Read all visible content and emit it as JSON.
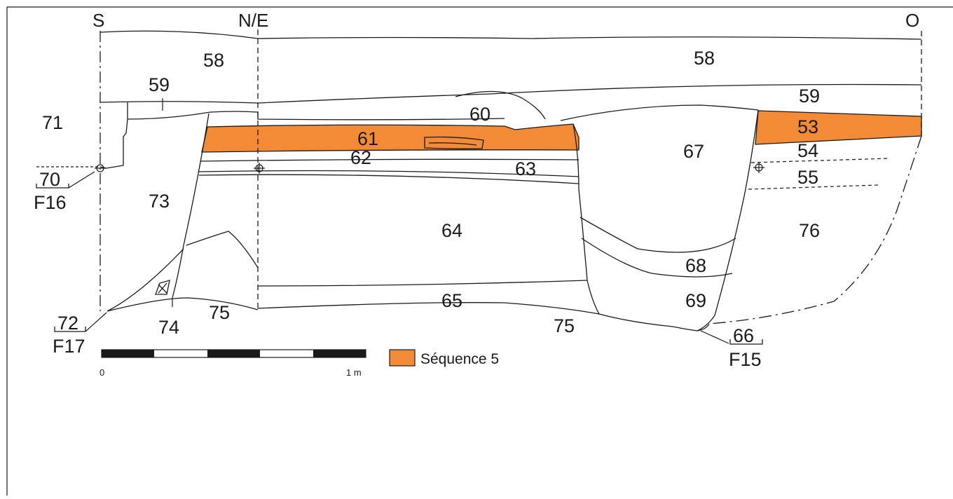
{
  "orientation": {
    "south": "S",
    "north_east": "N/E",
    "west": "O"
  },
  "layers": {
    "l58a": "58",
    "l58b": "58",
    "l59a": "59",
    "l59b": "59",
    "l60": "60",
    "l61": "61",
    "l62": "62",
    "l63": "63",
    "l64": "64",
    "l65": "65",
    "l67": "67",
    "l68": "68",
    "l69": "69",
    "l71": "71",
    "l73": "73",
    "l74": "74",
    "l75a": "75",
    "l75b": "75",
    "l76": "76",
    "l53": "53",
    "l54": "54",
    "l55": "55"
  },
  "features": {
    "f70": {
      "unit": "70",
      "feature": "F16"
    },
    "f72": {
      "unit": "72",
      "feature": "F17"
    },
    "f66": {
      "unit": "66",
      "feature": "F15"
    }
  },
  "scale": {
    "start": "0",
    "end": "1 m"
  },
  "legend": {
    "label": "Séquence 5",
    "color": "#f28a36"
  },
  "colors": {
    "sequence5": "#f28a36",
    "line": "#1a1a1a",
    "background": "#ffffff"
  }
}
